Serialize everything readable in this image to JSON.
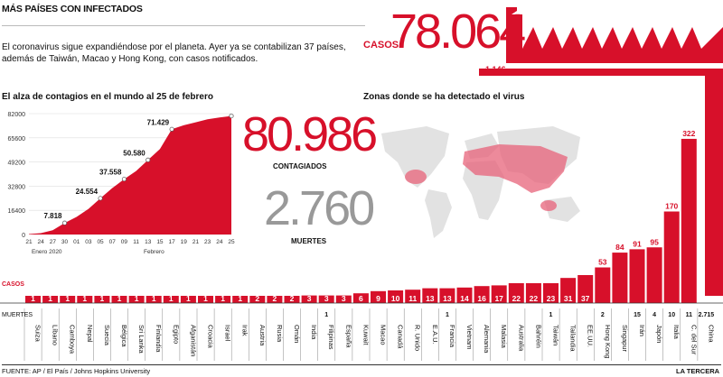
{
  "header": {
    "title": "MÁS PAÍSES CON INFECTADOS",
    "intro": "El coronavirus sigue expandiéndose por el planeta. Ayer ya se contabilizan 37 países, además de Taiwán, Macao y Hong Kong, con casos notificados.",
    "casos_label": "CASOS",
    "casos_total": "78.064",
    "china_cases_label": "1.146"
  },
  "line_chart_title": "El alza de contagios en el mundo al 25 de febrero",
  "map_title": "Zonas donde se ha detectado el virus",
  "summary": {
    "contagiados_value": "80.986",
    "contagiados_label": "CONTAGIADOS",
    "muertes_value": "2.760",
    "muertes_label": "MUERTES"
  },
  "row_labels": {
    "casos": "CASOS",
    "muertes": "MUERTES"
  },
  "footer": {
    "source": "FUENTE: AP / El País / Johns Hopkins University",
    "brand": "LA TERCERA"
  },
  "colors": {
    "accent": "#d7102a",
    "map_land": "#e2e2e2",
    "map_infected": "#e8637a"
  },
  "chart_data": [
    {
      "type": "area",
      "title": "El alza de contagios en el mundo al 25 de febrero",
      "x": [
        "21",
        "24",
        "27",
        "30",
        "01",
        "03",
        "05",
        "07",
        "09",
        "11",
        "13",
        "15",
        "17",
        "19",
        "21",
        "23",
        "24",
        "25"
      ],
      "x_groups": [
        {
          "label": "Enero 2020",
          "span": [
            0,
            3
          ]
        },
        {
          "label": "Febrero",
          "span": [
            4,
            17
          ]
        }
      ],
      "y": [
        300,
        900,
        2900,
        7818,
        11900,
        17400,
        24554,
        31500,
        37558,
        43100,
        50580,
        58000,
        71429,
        74100,
        76100,
        78200,
        79400,
        80400
      ],
      "annotated_points": [
        {
          "x": "30",
          "y": 7818,
          "label": "7.818"
        },
        {
          "x": "05",
          "y": 24554,
          "label": "24.554"
        },
        {
          "x": "09",
          "y": 37558,
          "label": "37.558"
        },
        {
          "x": "13",
          "y": 50580,
          "label": "50.580"
        },
        {
          "x": "17",
          "y": 71429,
          "label": "71.429"
        }
      ],
      "y_ticks": [
        "0",
        "16400",
        "32800",
        "49200",
        "65600",
        "82000"
      ],
      "ylim": [
        0,
        82000
      ]
    },
    {
      "type": "bar",
      "categories": [
        "Suiza",
        "Líbano",
        "Camboya",
        "Nepal",
        "Suecia",
        "Bélgica",
        "Sri Lanka",
        "Finlandia",
        "Egipto",
        "Afganistán",
        "Croacia",
        "Israel",
        "Irak",
        "Austria",
        "Rusia",
        "Omán",
        "India",
        "Filipinas",
        "España",
        "Kuwait",
        "Macao",
        "Canadá",
        "R. Unido",
        "E.A.U.",
        "Francia",
        "Vietnam",
        "Alemania",
        "Malasia",
        "Australia",
        "Bahréin",
        "Taiwán",
        "Tailandia",
        "EE.UU.",
        "Hong Kong",
        "Singapur",
        "Irán",
        "Japón",
        "Italia",
        "C. del Sur",
        "China"
      ],
      "values": [
        1,
        1,
        1,
        1,
        1,
        1,
        1,
        1,
        1,
        1,
        1,
        1,
        1,
        2,
        2,
        2,
        3,
        3,
        3,
        6,
        9,
        10,
        11,
        13,
        13,
        14,
        16,
        17,
        22,
        22,
        23,
        31,
        37,
        53,
        84,
        91,
        95,
        170,
        322,
        1146
      ],
      "value_labels": [
        "1",
        "1",
        "1",
        "1",
        "1",
        "1",
        "1",
        "1",
        "1",
        "1",
        "1",
        "1",
        "1",
        "2",
        "2",
        "2",
        "3",
        "3",
        "3",
        "6",
        "9",
        "10",
        "11",
        "13",
        "13",
        "14",
        "16",
        "17",
        "22",
        "22",
        "23",
        "31",
        "37",
        "53",
        "84",
        "91",
        "95",
        "170",
        "322",
        "1.146"
      ],
      "deaths": [
        "",
        "",
        "",
        "",
        "",
        "",
        "",
        "",
        "",
        "",
        "",
        "",
        "",
        "",
        "",
        "",
        "",
        "1",
        "",
        "",
        "",
        "",
        "",
        "",
        "1",
        "",
        "",
        "",
        "",
        "",
        "1",
        "",
        "",
        "2",
        "",
        "15",
        "4",
        "10",
        "11",
        "2.715"
      ]
    }
  ]
}
